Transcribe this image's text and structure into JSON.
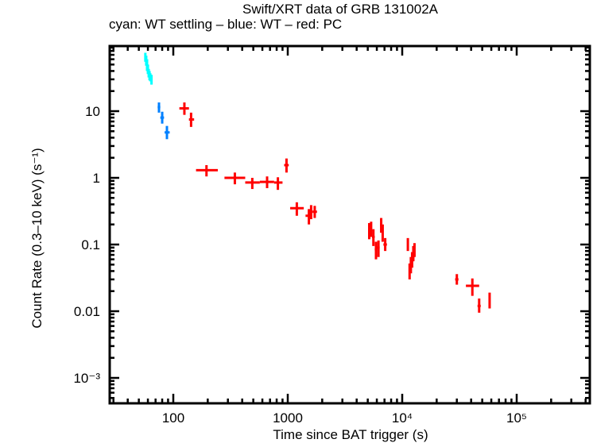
{
  "chart_data": {
    "type": "scatter",
    "title": "Swift/XRT data of GRB 131002A",
    "subtitle": "cyan: WT settling – blue: WT – red: PC",
    "xlabel": "Time since BAT trigger (s)",
    "ylabel": "Count Rate (0.3–10 keV) (s⁻¹)",
    "xscale": "log",
    "yscale": "log",
    "xlim": [
      30,
      450000
    ],
    "ylim": [
      0.0005,
      100
    ],
    "x_ticks": [
      {
        "value": 100,
        "label": "100"
      },
      {
        "value": 1000,
        "label": "1000"
      },
      {
        "value": 10000,
        "label": "10⁴"
      },
      {
        "value": 100000,
        "label": "10⁵"
      }
    ],
    "y_ticks": [
      {
        "value": 10,
        "label": "10"
      },
      {
        "value": 1,
        "label": "1"
      },
      {
        "value": 0.1,
        "label": "0.1"
      },
      {
        "value": 0.01,
        "label": "0.01"
      },
      {
        "value": 0.001,
        "label": "10⁻³"
      }
    ],
    "series": [
      {
        "name": "WT settling",
        "color": "#00ffff",
        "points": [
          {
            "x": 57,
            "xlo": 56.5,
            "xhi": 57.5,
            "y": 65,
            "ylo": 55,
            "yhi": 75
          },
          {
            "x": 58,
            "xlo": 57.5,
            "xhi": 58.5,
            "y": 58,
            "ylo": 48,
            "yhi": 68
          },
          {
            "x": 59,
            "xlo": 58.5,
            "xhi": 59.5,
            "y": 50,
            "ylo": 40,
            "yhi": 60
          },
          {
            "x": 60,
            "xlo": 59.5,
            "xhi": 60.5,
            "y": 42,
            "ylo": 36,
            "yhi": 50
          },
          {
            "x": 61,
            "xlo": 60.5,
            "xhi": 61.5,
            "y": 37,
            "ylo": 32,
            "yhi": 43
          },
          {
            "x": 62,
            "xlo": 61.5,
            "xhi": 62.5,
            "y": 34,
            "ylo": 29,
            "yhi": 40
          },
          {
            "x": 63,
            "xlo": 62.5,
            "xhi": 63.5,
            "y": 32,
            "ylo": 28,
            "yhi": 37
          },
          {
            "x": 64.5,
            "xlo": 63.5,
            "xhi": 65.5,
            "y": 30,
            "ylo": 25,
            "yhi": 35
          }
        ]
      },
      {
        "name": "WT",
        "color": "#0080ff",
        "points": [
          {
            "x": 75,
            "xlo": 73,
            "xhi": 77,
            "y": 11.5,
            "ylo": 9.5,
            "yhi": 13.5
          },
          {
            "x": 80,
            "xlo": 77,
            "xhi": 83,
            "y": 8.0,
            "ylo": 6.5,
            "yhi": 9.8
          },
          {
            "x": 88,
            "xlo": 84,
            "xhi": 93,
            "y": 4.8,
            "ylo": 3.8,
            "yhi": 6.0
          }
        ]
      },
      {
        "name": "PC",
        "color": "#ff0000",
        "points": [
          {
            "x": 125,
            "xlo": 113,
            "xhi": 137,
            "y": 11.0,
            "ylo": 8.8,
            "yhi": 13.5
          },
          {
            "x": 143,
            "xlo": 137,
            "xhi": 152,
            "y": 7.5,
            "ylo": 5.8,
            "yhi": 9.5
          },
          {
            "x": 195,
            "xlo": 158,
            "xhi": 245,
            "y": 1.3,
            "ylo": 1.05,
            "yhi": 1.55
          },
          {
            "x": 345,
            "xlo": 280,
            "xhi": 425,
            "y": 1.0,
            "ylo": 0.8,
            "yhi": 1.2
          },
          {
            "x": 490,
            "xlo": 425,
            "xhi": 570,
            "y": 0.85,
            "ylo": 0.68,
            "yhi": 1.0
          },
          {
            "x": 660,
            "xlo": 570,
            "xhi": 760,
            "y": 0.87,
            "ylo": 0.7,
            "yhi": 1.05
          },
          {
            "x": 820,
            "xlo": 760,
            "xhi": 900,
            "y": 0.85,
            "ylo": 0.66,
            "yhi": 1.02
          },
          {
            "x": 975,
            "xlo": 930,
            "xhi": 1020,
            "y": 1.55,
            "ylo": 1.2,
            "yhi": 1.95
          },
          {
            "x": 1200,
            "xlo": 1050,
            "xhi": 1380,
            "y": 0.35,
            "ylo": 0.27,
            "yhi": 0.43
          },
          {
            "x": 1530,
            "xlo": 1430,
            "xhi": 1580,
            "y": 0.27,
            "ylo": 0.2,
            "yhi": 0.34
          },
          {
            "x": 1600,
            "xlo": 1560,
            "xhi": 1650,
            "y": 0.31,
            "ylo": 0.24,
            "yhi": 0.39
          },
          {
            "x": 1720,
            "xlo": 1650,
            "xhi": 1800,
            "y": 0.31,
            "ylo": 0.25,
            "yhi": 0.38
          },
          {
            "x": 5150,
            "xlo": 5050,
            "xhi": 5250,
            "y": 0.16,
            "ylo": 0.12,
            "yhi": 0.21
          },
          {
            "x": 5350,
            "xlo": 5250,
            "xhi": 5450,
            "y": 0.18,
            "ylo": 0.13,
            "yhi": 0.22
          },
          {
            "x": 5600,
            "xlo": 5450,
            "xhi": 5750,
            "y": 0.13,
            "ylo": 0.095,
            "yhi": 0.17
          },
          {
            "x": 5900,
            "xlo": 5750,
            "xhi": 6050,
            "y": 0.085,
            "ylo": 0.06,
            "yhi": 0.11
          },
          {
            "x": 6200,
            "xlo": 6050,
            "xhi": 6350,
            "y": 0.09,
            "ylo": 0.065,
            "yhi": 0.115
          },
          {
            "x": 6550,
            "xlo": 6400,
            "xhi": 6700,
            "y": 0.2,
            "ylo": 0.15,
            "yhi": 0.25
          },
          {
            "x": 6750,
            "xlo": 6650,
            "xhi": 6850,
            "y": 0.15,
            "ylo": 0.11,
            "yhi": 0.2
          },
          {
            "x": 7100,
            "xlo": 6850,
            "xhi": 7350,
            "y": 0.1,
            "ylo": 0.08,
            "yhi": 0.125
          },
          {
            "x": 11200,
            "xlo": 11100,
            "xhi": 11300,
            "y": 0.1,
            "ylo": 0.08,
            "yhi": 0.125
          },
          {
            "x": 11600,
            "xlo": 11400,
            "xhi": 11800,
            "y": 0.04,
            "ylo": 0.03,
            "yhi": 0.052
          },
          {
            "x": 11900,
            "xlo": 11750,
            "xhi": 12050,
            "y": 0.05,
            "ylo": 0.037,
            "yhi": 0.065
          },
          {
            "x": 12200,
            "xlo": 12050,
            "xhi": 12350,
            "y": 0.06,
            "ylo": 0.045,
            "yhi": 0.077
          },
          {
            "x": 12500,
            "xlo": 12350,
            "xhi": 12650,
            "y": 0.075,
            "ylo": 0.056,
            "yhi": 0.095
          },
          {
            "x": 12800,
            "xlo": 12650,
            "xhi": 12950,
            "y": 0.085,
            "ylo": 0.065,
            "yhi": 0.105
          },
          {
            "x": 30000,
            "xlo": 29000,
            "xhi": 31000,
            "y": 0.03,
            "ylo": 0.025,
            "yhi": 0.036
          },
          {
            "x": 41000,
            "xlo": 36000,
            "xhi": 47000,
            "y": 0.024,
            "ylo": 0.017,
            "yhi": 0.031
          },
          {
            "x": 47000,
            "xlo": 45500,
            "xhi": 48500,
            "y": 0.012,
            "ylo": 0.0095,
            "yhi": 0.0155
          },
          {
            "x": 58000,
            "xlo": 57000,
            "xhi": 59000,
            "y": 0.015,
            "ylo": 0.011,
            "yhi": 0.019
          }
        ]
      }
    ]
  }
}
